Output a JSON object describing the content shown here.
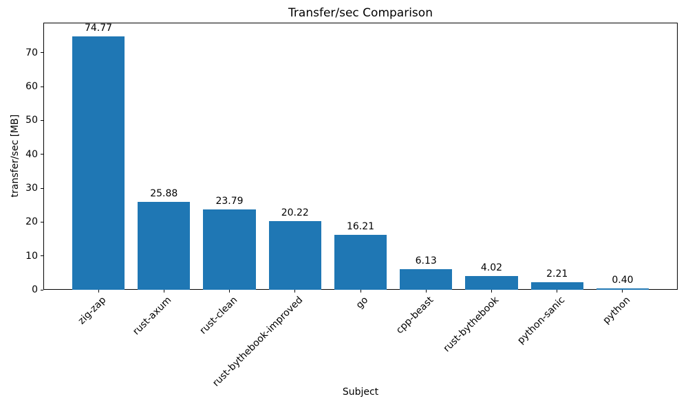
{
  "chart_data": {
    "type": "bar",
    "title": "Transfer/sec Comparison",
    "xlabel": "Subject",
    "ylabel": "transfer/sec [MB]",
    "categories": [
      "zig-zap",
      "rust-axum",
      "rust-clean",
      "rust-bythebook-improved",
      "go",
      "cpp-beast",
      "rust-bythebook",
      "python-sanic",
      "python"
    ],
    "values": [
      74.77,
      25.88,
      23.79,
      20.22,
      16.21,
      6.13,
      4.02,
      2.21,
      0.4
    ],
    "value_labels": [
      "74.77",
      "25.88",
      "23.79",
      "20.22",
      "16.21",
      "6.13",
      "4.02",
      "2.21",
      "0.40"
    ],
    "yticks": [
      0,
      10,
      20,
      30,
      40,
      50,
      60,
      70
    ],
    "ytick_labels": [
      "0",
      "10",
      "20",
      "30",
      "40",
      "50",
      "60",
      "70"
    ],
    "ylim": [
      0,
      78.9
    ],
    "bar_color": "#1f77b4",
    "text_color": "#000000",
    "background_color": "#ffffff",
    "grid": false,
    "legend_position": "none",
    "x_tick_rotation_deg": 45
  }
}
